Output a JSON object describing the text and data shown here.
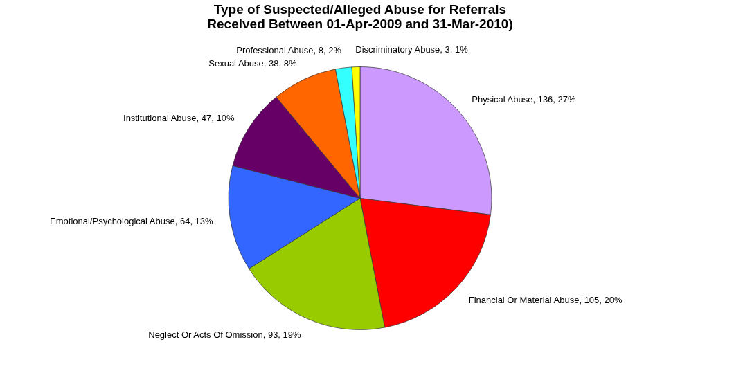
{
  "chart_data": {
    "type": "pie",
    "title": "Type of Suspected/Alleged Abuse for Referrals Received Between 01-Apr-2009 and 31-Mar-2010)",
    "categories": [
      "Physical Abuse, 136, 27%",
      "Financial Or Material Abuse, 105, 20%",
      "Neglect Or Acts Of Omission, 93, 19%",
      "Emotional/Psychological Abuse, 64, 13%",
      "Institutional Abuse, 47, 10%",
      "Sexual Abuse, 38, 8%",
      "Professional Abuse, 8, 2%",
      "Discriminatory Abuse, 3, 1%"
    ],
    "values": [
      27,
      20,
      19,
      13,
      10,
      8,
      2,
      1
    ],
    "colors": [
      "#cc99ff",
      "#ff0000",
      "#99cc00",
      "#3366ff",
      "#660066",
      "#ff6600",
      "#33ffff",
      "#ffff00"
    ],
    "legend": false
  }
}
